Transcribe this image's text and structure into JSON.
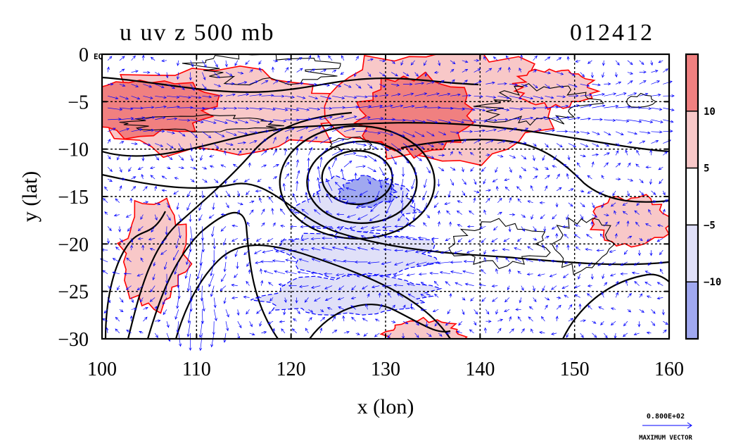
{
  "chart_data": {
    "type": "contour-vector-map",
    "title_left": "u uv z 500 mb",
    "title_right": "012412",
    "xlabel": "x (lon)",
    "ylabel": "y (lat)",
    "xlim": [
      100,
      160
    ],
    "ylim": [
      -30,
      0
    ],
    "x_ticks": [
      "100",
      "110",
      "120",
      "130",
      "140",
      "150",
      "160"
    ],
    "y_ticks": [
      "0",
      "−5",
      "−10",
      "−15",
      "−20",
      "−25",
      "−30"
    ],
    "x_tick_values": [
      100,
      110,
      120,
      130,
      140,
      150,
      160
    ],
    "y_tick_values": [
      0,
      -5,
      -10,
      -15,
      -20,
      -25,
      -30
    ],
    "grid": true,
    "corner_label": "EQ",
    "colorbar": {
      "levels": [
        "10",
        "5",
        "−5",
        "−10"
      ],
      "level_values": [
        10,
        5,
        -5,
        -10
      ],
      "colors": [
        "#f08080",
        "#f8c8c8",
        "#ffffff",
        "#e0e0f8",
        "#a0a8f0"
      ]
    },
    "positive_color": "#ff0000",
    "negative_color": "#0000ff",
    "vector_color": "#0000ff",
    "vector_reference": {
      "value": "0.800E+02",
      "label": "MAXIMUM VECTOR"
    },
    "shaded_regions": [
      {
        "sign": "positive",
        "level": 10,
        "center": [
          104,
          -5.5
        ],
        "extent": [
          8,
          3
        ]
      },
      {
        "sign": "positive",
        "level": 5,
        "center": [
          112,
          -6
        ],
        "extent": [
          14,
          4.5
        ]
      },
      {
        "sign": "positive",
        "level": 10,
        "center": [
          133,
          -6.5
        ],
        "extent": [
          6,
          4
        ]
      },
      {
        "sign": "positive",
        "level": 5,
        "center": [
          136,
          -5.5
        ],
        "extent": [
          11,
          6
        ]
      },
      {
        "sign": "positive",
        "level": 5,
        "center": [
          148,
          -3.5
        ],
        "extent": [
          4,
          2
        ]
      },
      {
        "sign": "positive",
        "level": 5,
        "center": [
          105.5,
          -21
        ],
        "extent": [
          3.5,
          5.5
        ]
      },
      {
        "sign": "positive",
        "level": 5,
        "center": [
          156,
          -17.5
        ],
        "extent": [
          4,
          2.5
        ]
      },
      {
        "sign": "positive",
        "level": 5,
        "center": [
          134,
          -29.5
        ],
        "extent": [
          4,
          1.5
        ]
      },
      {
        "sign": "negative",
        "level": -5,
        "center": [
          127,
          -16
        ],
        "extent": [
          6,
          3
        ]
      },
      {
        "sign": "negative",
        "level": -5,
        "center": [
          127,
          -21
        ],
        "extent": [
          8,
          2.5
        ]
      },
      {
        "sign": "negative",
        "level": -5,
        "center": [
          126,
          -25.5
        ],
        "extent": [
          9,
          2
        ]
      },
      {
        "sign": "negative",
        "level": -10,
        "center": [
          128,
          -14.5
        ],
        "extent": [
          3,
          1.5
        ]
      }
    ]
  }
}
